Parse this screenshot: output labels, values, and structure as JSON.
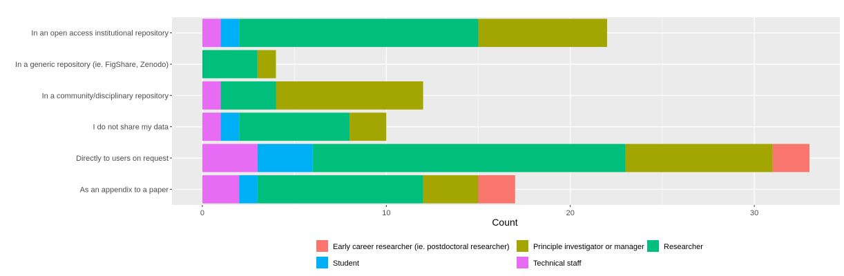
{
  "chart_data": {
    "type": "bar",
    "orientation": "horizontal",
    "stacked": true,
    "categories": [
      "In an open access institutional repository",
      "In a generic repository (ie. FigShare, Zenodo)",
      "In a community/disciplinary repository",
      "I do not share my data",
      "Directly to users on request",
      "As an appendix to a paper"
    ],
    "stack_order": [
      "Technical staff",
      "Student",
      "Researcher",
      "Principle investigator or manager",
      "Early career researcher (ie. postdoctoral researcher)"
    ],
    "series": [
      {
        "name": "Early career researcher (ie. postdoctoral researcher)",
        "color": "#F8766D",
        "values": [
          0,
          0,
          0,
          0,
          2,
          2
        ]
      },
      {
        "name": "Principle investigator or manager",
        "color": "#A3A500",
        "values": [
          7,
          1,
          8,
          2,
          8,
          3
        ]
      },
      {
        "name": "Researcher",
        "color": "#00BF7D",
        "values": [
          13,
          3,
          3,
          6,
          17,
          9
        ]
      },
      {
        "name": "Student",
        "color": "#00B0F6",
        "values": [
          1,
          0,
          0,
          1,
          3,
          1
        ]
      },
      {
        "name": "Technical staff",
        "color": "#E76BF3",
        "values": [
          1,
          0,
          1,
          1,
          3,
          2
        ]
      }
    ],
    "xlabel": "Count",
    "ylabel": "",
    "xlim": [
      -1.65,
      34.65
    ],
    "xticks": [
      0,
      10,
      20,
      30
    ],
    "grid": true,
    "panel_background": "#EBEBEB",
    "legend_position": "bottom"
  }
}
